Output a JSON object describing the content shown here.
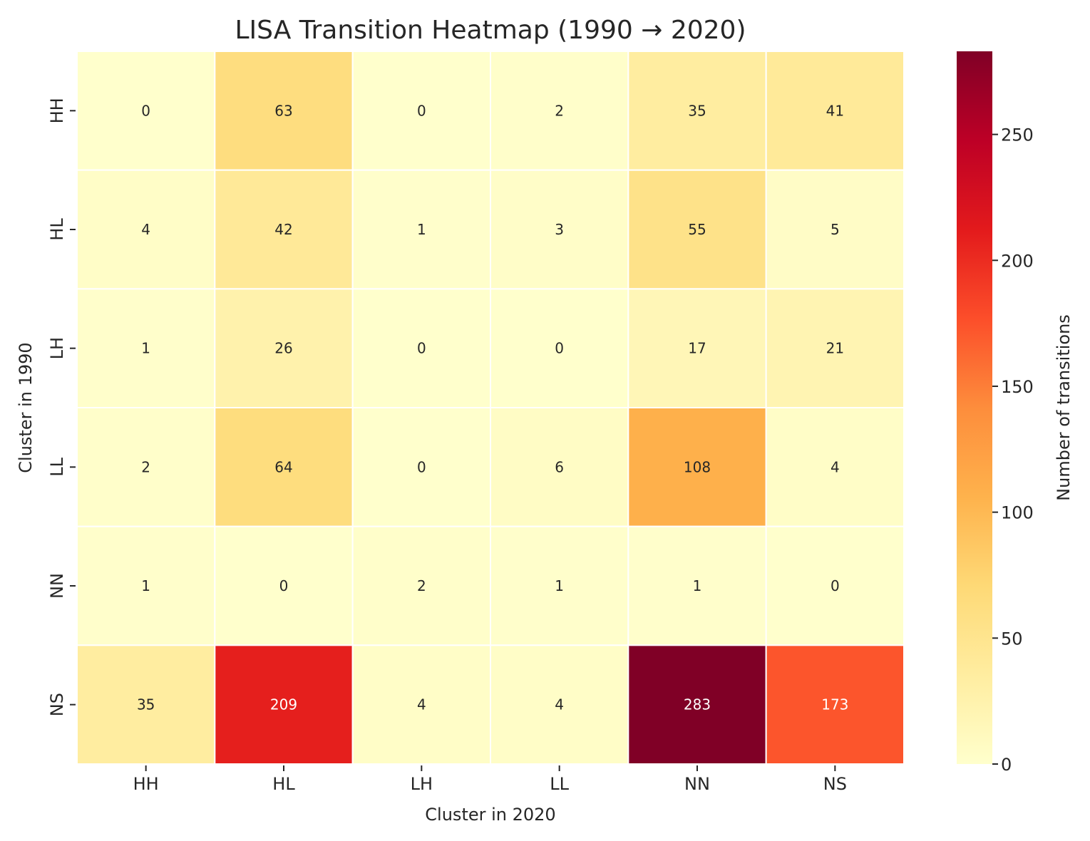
{
  "chart_data": {
    "type": "heatmap",
    "title": "LISA Transition Heatmap (1990 → 2020)",
    "xlabel": "Cluster in 2020",
    "ylabel": "Cluster in 1990",
    "x_categories": [
      "HH",
      "HL",
      "LH",
      "LL",
      "NN",
      "NS"
    ],
    "y_categories": [
      "HH",
      "HL",
      "LH",
      "LL",
      "NN",
      "NS"
    ],
    "values": [
      [
        0,
        63,
        0,
        2,
        35,
        41
      ],
      [
        4,
        42,
        1,
        3,
        55,
        5
      ],
      [
        1,
        26,
        0,
        0,
        17,
        21
      ],
      [
        2,
        64,
        0,
        6,
        108,
        4
      ],
      [
        1,
        0,
        2,
        1,
        1,
        0
      ],
      [
        35,
        209,
        4,
        4,
        283,
        173
      ]
    ],
    "colorbar": {
      "label": "Number of transitions",
      "range": [
        0,
        283
      ],
      "ticks": [
        0,
        50,
        100,
        150,
        200,
        250
      ],
      "colormap": "YlOrRd",
      "colors": [
        "#ffffcc",
        "#ffeda0",
        "#fed976",
        "#feb24c",
        "#fd8d3c",
        "#fc4e2a",
        "#e31a1c",
        "#bd0026",
        "#800026"
      ]
    },
    "grid": false,
    "cell_border_color": "#ffffff"
  }
}
